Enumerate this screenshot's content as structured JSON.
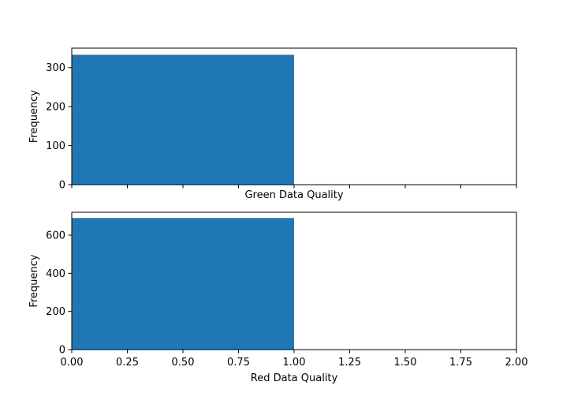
{
  "chart_data": [
    {
      "type": "bar",
      "title": "",
      "xlabel": "Green Data Quality",
      "ylabel": "Frequency",
      "xlim": [
        0,
        2
      ],
      "ylim": [
        0,
        350
      ],
      "x_ticks": [
        0,
        0.25,
        0.5,
        0.75,
        1.0,
        1.25,
        1.5,
        1.75,
        2.0
      ],
      "x_tick_labels_visible": false,
      "y_ticks": [
        0,
        100,
        200,
        300
      ],
      "y_tick_labels": [
        "0",
        "100",
        "200",
        "300"
      ],
      "bars": [
        {
          "x0": 0,
          "x1": 1,
          "value": 333
        }
      ],
      "bar_color": "#1f77b4",
      "grid": false
    },
    {
      "type": "bar",
      "title": "",
      "xlabel": "Red Data Quality",
      "ylabel": "Frequency",
      "xlim": [
        0,
        2
      ],
      "ylim": [
        0,
        720
      ],
      "x_ticks": [
        0,
        0.25,
        0.5,
        0.75,
        1.0,
        1.25,
        1.5,
        1.75,
        2.0
      ],
      "x_tick_labels": [
        "0.00",
        "0.25",
        "0.50",
        "0.75",
        "1.00",
        "1.25",
        "1.50",
        "1.75",
        "2.00"
      ],
      "x_tick_labels_visible": true,
      "y_ticks": [
        0,
        200,
        400,
        600
      ],
      "y_tick_labels": [
        "0",
        "200",
        "400",
        "600"
      ],
      "bars": [
        {
          "x0": 0,
          "x1": 1,
          "value": 690
        }
      ],
      "bar_color": "#1f77b4",
      "grid": false
    }
  ]
}
